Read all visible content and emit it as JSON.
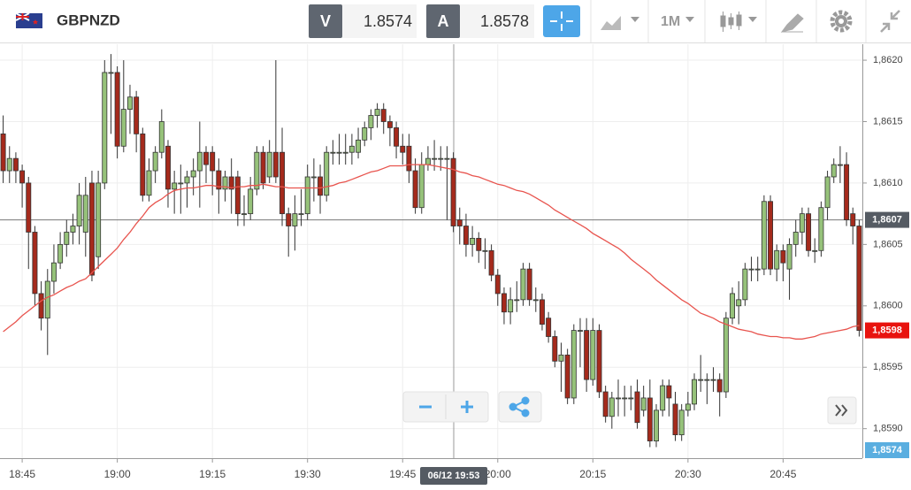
{
  "toolbar": {
    "symbol": "GBPNZD",
    "bid_label": "V",
    "bid": "1.8574",
    "ask_label": "A",
    "ask": "1.8578",
    "timeframe": "1M"
  },
  "chart_data": {
    "type": "candlestick",
    "categories": [
      null,
      null,
      null,
      "18:45",
      null,
      null,
      null,
      null,
      null,
      null,
      null,
      null,
      null,
      null,
      null,
      null,
      null,
      null,
      "19:00",
      null,
      null,
      null,
      null,
      null,
      null,
      null,
      null,
      null,
      null,
      null,
      null,
      null,
      null,
      "19:15",
      null,
      null,
      null,
      null,
      null,
      null,
      null,
      null,
      null,
      null,
      null,
      null,
      null,
      null,
      "19:30",
      null,
      null,
      null,
      null,
      null,
      null,
      null,
      null,
      null,
      null,
      null,
      null,
      null,
      null,
      "19:45",
      null,
      null,
      null,
      null,
      null,
      null,
      null,
      null,
      null,
      null,
      null,
      null,
      null,
      null,
      "20:00",
      null,
      null,
      null,
      null,
      null,
      null,
      null,
      null,
      null,
      null,
      null,
      null,
      null,
      null,
      "20:15",
      null,
      null,
      null,
      null,
      null,
      null,
      null,
      null,
      null,
      null,
      null,
      null,
      null,
      null,
      "20:30",
      null,
      null,
      null,
      null,
      null,
      null,
      null,
      null,
      null,
      null,
      null,
      null,
      null,
      null,
      "20:45",
      null,
      null,
      null,
      null,
      null,
      null,
      null,
      null,
      null,
      null,
      null,
      null
    ],
    "open": [
      1.8614,
      1.8611,
      1.8612,
      1.8611,
      1.861,
      1.8606,
      1.8601,
      1.8599,
      1.8602,
      1.86035,
      1.8605,
      1.8606,
      1.86065,
      1.8606,
      1.861,
      1.8604,
      1.861,
      1.8619,
      1.8619,
      1.8613,
      1.8616,
      1.8617,
      1.8614,
      1.8609,
      1.8611,
      1.86125,
      1.8613,
      1.86095,
      1.861,
      1.861,
      1.86105,
      1.8611,
      1.86125,
      1.86125,
      1.8611,
      1.86095,
      1.86105,
      1.86105,
      1.86075,
      1.86075,
      1.86095,
      1.86125,
      1.86105,
      1.86125,
      1.86125,
      1.86075,
      1.86065,
      1.86075,
      1.86075,
      1.86105,
      1.86105,
      1.8609,
      1.86125,
      1.86125,
      1.86125,
      1.86125,
      1.86125,
      1.86135,
      1.86145,
      1.86155,
      1.8616,
      1.8615,
      1.86145,
      1.8613,
      1.8613,
      1.8611,
      1.8608,
      1.86115,
      1.8612,
      1.8612,
      1.8612,
      1.8612,
      1.8607,
      1.86065,
      1.8605,
      1.86055,
      1.86045,
      1.86045,
      1.86025,
      1.8601,
      1.85995,
      1.86005,
      1.86005,
      1.8603,
      1.86005,
      1.86005,
      1.8599,
      1.85975,
      1.85955,
      1.8596,
      1.85925,
      1.8598,
      1.8598,
      1.8594,
      1.8598,
      1.8593,
      1.8591,
      1.85925,
      1.85925,
      1.85925,
      1.8593,
      1.85915,
      1.85925,
      1.8589,
      1.85915,
      1.85935,
      1.8592,
      1.85895,
      1.85915,
      1.8592,
      1.8594,
      1.8594,
      1.8594,
      1.8594,
      1.8593,
      1.8599,
      1.86,
      1.86005,
      1.8603,
      1.8603,
      1.8603,
      1.86085,
      1.8603,
      1.86045,
      1.8603,
      1.8605,
      1.8606,
      1.86075,
      1.86045,
      1.86045,
      1.8608,
      1.86105,
      1.86115,
      1.86115,
      1.86075,
      1.86065
    ],
    "high": [
      1.86155,
      1.8613,
      1.86125,
      1.86115,
      1.86105,
      1.86065,
      1.8602,
      1.8603,
      1.8605,
      1.8606,
      1.8607,
      1.86075,
      1.861,
      1.86105,
      1.8611,
      1.8611,
      1.862,
      1.86205,
      1.86195,
      1.862,
      1.8618,
      1.86175,
      1.86145,
      1.8612,
      1.8613,
      1.8616,
      1.86135,
      1.8611,
      1.86115,
      1.8611,
      1.8612,
      1.8615,
      1.8613,
      1.8613,
      1.8612,
      1.8611,
      1.8612,
      1.8611,
      1.8609,
      1.86105,
      1.8613,
      1.8613,
      1.86135,
      1.862,
      1.86145,
      1.8608,
      1.8609,
      1.86095,
      1.86115,
      1.8612,
      1.86115,
      1.8613,
      1.86135,
      1.8614,
      1.8614,
      1.8614,
      1.86145,
      1.8615,
      1.8616,
      1.86165,
      1.86165,
      1.86155,
      1.8615,
      1.8614,
      1.8614,
      1.8612,
      1.86125,
      1.8613,
      1.86135,
      1.8613,
      1.8613,
      1.86125,
      1.8608,
      1.86075,
      1.86065,
      1.8606,
      1.86055,
      1.8605,
      1.8603,
      1.86015,
      1.86015,
      1.8602,
      1.86035,
      1.86035,
      1.86015,
      1.8601,
      1.85995,
      1.8598,
      1.8597,
      1.85965,
      1.85985,
      1.8599,
      1.8599,
      1.8599,
      1.85985,
      1.85935,
      1.8593,
      1.8594,
      1.85935,
      1.85935,
      1.8594,
      1.85935,
      1.8594,
      1.8592,
      1.8594,
      1.8594,
      1.8593,
      1.8592,
      1.8593,
      1.85945,
      1.8596,
      1.85945,
      1.8595,
      1.85945,
      1.85995,
      1.86015,
      1.8602,
      1.86035,
      1.8604,
      1.8604,
      1.8609,
      1.8609,
      1.8605,
      1.8605,
      1.86055,
      1.8607,
      1.8608,
      1.8608,
      1.86055,
      1.86085,
      1.8611,
      1.8612,
      1.8613,
      1.86125,
      1.8608,
      1.8607
    ],
    "low": [
      1.861,
      1.861,
      1.861,
      1.8608,
      1.8603,
      1.86,
      1.8598,
      1.8596,
      1.8601,
      1.8603,
      1.8604,
      1.8605,
      1.8605,
      1.8604,
      1.8602,
      1.8603,
      1.86095,
      1.8614,
      1.8612,
      1.86125,
      1.8614,
      1.86125,
      1.86085,
      1.86085,
      1.861,
      1.8612,
      1.8608,
      1.86075,
      1.86075,
      1.8608,
      1.8609,
      1.8608,
      1.861,
      1.8609,
      1.86075,
      1.86085,
      1.86075,
      1.86065,
      1.86065,
      1.8607,
      1.8609,
      1.86095,
      1.861,
      1.861,
      1.86065,
      1.8604,
      1.86045,
      1.86065,
      1.8607,
      1.86085,
      1.86075,
      1.86085,
      1.86115,
      1.86115,
      1.86115,
      1.86115,
      1.8612,
      1.8613,
      1.86135,
      1.86145,
      1.8614,
      1.8613,
      1.8612,
      1.86115,
      1.861,
      1.86075,
      1.86075,
      1.8611,
      1.8611,
      1.8611,
      1.8607,
      1.8606,
      1.8605,
      1.8604,
      1.8604,
      1.86035,
      1.8603,
      1.8602,
      1.86,
      1.85985,
      1.85985,
      1.85995,
      1.86,
      1.86,
      1.85995,
      1.8598,
      1.8597,
      1.8595,
      1.8593,
      1.8592,
      1.8592,
      1.8595,
      1.8593,
      1.85935,
      1.85925,
      1.85905,
      1.859,
      1.8591,
      1.8591,
      1.85915,
      1.859,
      1.8591,
      1.85885,
      1.85885,
      1.8591,
      1.8591,
      1.8589,
      1.8589,
      1.8591,
      1.85915,
      1.8593,
      1.8592,
      1.8593,
      1.8591,
      1.85925,
      1.85985,
      1.85985,
      1.86,
      1.8602,
      1.8602,
      1.86025,
      1.86025,
      1.8602,
      1.8602,
      1.86005,
      1.8604,
      1.8605,
      1.8604,
      1.86035,
      1.8604,
      1.8607,
      1.861,
      1.861,
      1.86065,
      1.8605,
      1.85975
    ],
    "close": [
      1.8611,
      1.8612,
      1.8611,
      1.861,
      1.8606,
      1.8601,
      1.8599,
      1.8602,
      1.86035,
      1.8605,
      1.8606,
      1.86065,
      1.8609,
      1.8609,
      1.86025,
      1.861,
      1.8619,
      1.8619,
      1.8613,
      1.8616,
      1.8617,
      1.8614,
      1.8609,
      1.8611,
      1.86125,
      1.8615,
      1.86095,
      1.861,
      1.861,
      1.86105,
      1.8611,
      1.86125,
      1.86115,
      1.8611,
      1.86095,
      1.86105,
      1.86095,
      1.86075,
      1.86075,
      1.86095,
      1.86125,
      1.861,
      1.86125,
      1.86105,
      1.86075,
      1.86065,
      1.86075,
      1.86075,
      1.86105,
      1.86105,
      1.8609,
      1.86125,
      1.86125,
      1.86125,
      1.86125,
      1.8613,
      1.86135,
      1.86145,
      1.86155,
      1.8616,
      1.8615,
      1.86145,
      1.8613,
      1.86125,
      1.8611,
      1.8608,
      1.86115,
      1.8612,
      1.8612,
      1.8612,
      1.8612,
      1.86065,
      1.86065,
      1.8605,
      1.86055,
      1.86045,
      1.86045,
      1.86025,
      1.8601,
      1.85995,
      1.86005,
      1.86005,
      1.8603,
      1.86005,
      1.86005,
      1.85985,
      1.85975,
      1.85955,
      1.8596,
      1.85925,
      1.8598,
      1.8598,
      1.8594,
      1.8598,
      1.8593,
      1.8591,
      1.85925,
      1.85925,
      1.85925,
      1.85925,
      1.85905,
      1.85925,
      1.8589,
      1.85915,
      1.85935,
      1.85925,
      1.85895,
      1.85915,
      1.8592,
      1.8594,
      1.8594,
      1.8594,
      1.8594,
      1.8593,
      1.8599,
      1.8601,
      1.86005,
      1.8603,
      1.8603,
      1.8603,
      1.86085,
      1.8603,
      1.86045,
      1.86035,
      1.8605,
      1.8606,
      1.86075,
      1.86045,
      1.86045,
      1.8608,
      1.86105,
      1.86115,
      1.86115,
      1.8607,
      1.86065,
      1.8598
    ],
    "up_color": "#96c27a",
    "down_color": "#a52a1c",
    "moving_average": {
      "color": "#e8544e",
      "values": [
        1.85979,
        1.85983,
        1.85987,
        1.85992,
        1.85996,
        1.86,
        1.86004,
        1.86007,
        1.86009,
        1.86012,
        1.86015,
        1.86017,
        1.8602,
        1.86022,
        1.86027,
        1.86032,
        1.86037,
        1.86042,
        1.86047,
        1.86054,
        1.8606,
        1.86067,
        1.86073,
        1.8608,
        1.86084,
        1.86087,
        1.86091,
        1.86094,
        1.86095,
        1.86096,
        1.86096,
        1.86097,
        1.86098,
        1.86098,
        1.86097,
        1.86097,
        1.86096,
        1.86097,
        1.86097,
        1.86098,
        1.86098,
        1.86099,
        1.86098,
        1.86097,
        1.86097,
        1.86096,
        1.86096,
        1.86096,
        1.86096,
        1.86096,
        1.86096,
        1.86097,
        1.86098,
        1.861,
        1.86101,
        1.86103,
        1.86105,
        1.86107,
        1.86109,
        1.8611,
        1.86112,
        1.86114,
        1.86114,
        1.86114,
        1.86115,
        1.86115,
        1.86115,
        1.86115,
        1.86114,
        1.86113,
        1.86112,
        1.86111,
        1.86109,
        1.86108,
        1.86106,
        1.86105,
        1.86103,
        1.86101,
        1.86099,
        1.86098,
        1.86096,
        1.86094,
        1.86093,
        1.86091,
        1.86088,
        1.86085,
        1.86082,
        1.86078,
        1.86075,
        1.86072,
        1.86069,
        1.86066,
        1.86063,
        1.86059,
        1.86056,
        1.86053,
        1.8605,
        1.86047,
        1.86043,
        1.86038,
        1.86034,
        1.8603,
        1.86026,
        1.86021,
        1.86017,
        1.86013,
        1.86009,
        1.86005,
        1.86002,
        1.85998,
        1.85994,
        1.85992,
        1.8599,
        1.85987,
        1.85985,
        1.85983,
        1.85981,
        1.8598,
        1.85979,
        1.85977,
        1.85976,
        1.85975,
        1.85975,
        1.85974,
        1.85974,
        1.85973,
        1.85973,
        1.85974,
        1.85975,
        1.85977,
        1.85978,
        1.85979,
        1.8598,
        1.85981,
        1.85983,
        1.85984
      ]
    },
    "ylim": [
      1.85876,
      1.86213
    ],
    "yticks": [
      {
        "value": 1.859,
        "label": "1,8590"
      },
      {
        "value": 1.8595,
        "label": "1,8595"
      },
      {
        "value": 1.86,
        "label": "1,8600"
      },
      {
        "value": 1.8605,
        "label": "1,8605"
      },
      {
        "value": 1.861,
        "label": "1,8610"
      },
      {
        "value": 1.8615,
        "label": "1,8615"
      },
      {
        "value": 1.862,
        "label": "1,8620"
      }
    ],
    "grid": true,
    "crosshair": {
      "value": 1.8607,
      "label": "1,8607",
      "time_label": "06/12 19:53"
    },
    "last_price": {
      "value": 1.8598,
      "label": "1,8598",
      "color": "#e8130e"
    },
    "bid_marker": {
      "label": "1,8574",
      "color": "#5aaee0"
    }
  }
}
